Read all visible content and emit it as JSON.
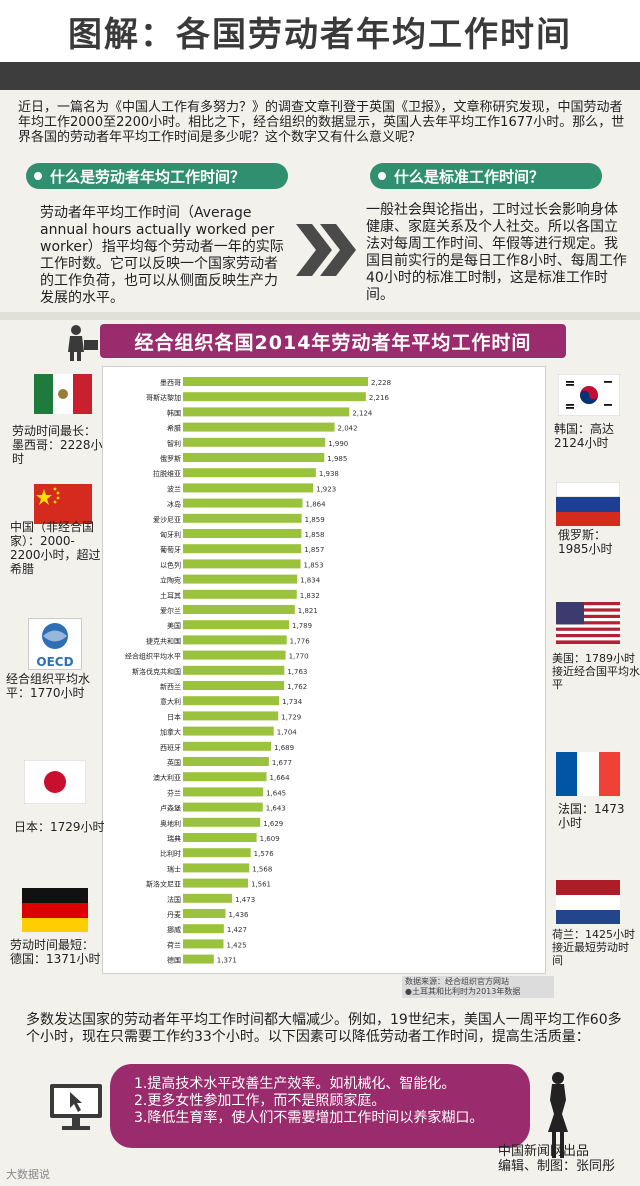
{
  "title": "图解：各国劳动者年均工作时间",
  "intro": "近日，一篇名为《中国人工作有多努力？》的调查文章刊登于英国《卫报》，文章称研究发现，中国劳动者年均工作2000至2200小时。相比之下，经合组织的数据显示，英国人去年平均工作1677小时。那么，世界各国的劳动者年平均工作时间是多少呢？这个数字又有什么意义呢？",
  "sections": {
    "q1": "什么是劳动者年均工作时间？",
    "q1_text": "劳动者年平均工作时间（Average annual hours actually worked per worker）指平均每个劳动者一年的实际工作时数。它可以反映一个国家劳动者的工作负荷，也可以从侧面反映生产力发展的水平。",
    "q2": "什么是标准工作时间？",
    "q2_text": "一般社会舆论指出，工时过长会影响身体健康、家庭关系及个人社交。所以各国立法对每周工作时间、年假等进行规定。我国目前实行的是每日工作8小时、每周工作40小时的标准工时制，这是标准工作时间。"
  },
  "chart_banner": "经合组织各国2014年劳动者年平均工作时间",
  "chart_data": {
    "type": "bar",
    "orientation": "horizontal",
    "categories": [
      "墨西哥",
      "哥斯达黎加",
      "韩国",
      "希腊",
      "智利",
      "俄罗斯",
      "拉脱维亚",
      "波兰",
      "冰岛",
      "爱沙尼亚",
      "匈牙利",
      "葡萄牙",
      "以色列",
      "立陶宛",
      "土耳其",
      "爱尔兰",
      "美国",
      "捷克共和国",
      "经合组织平均水平",
      "斯洛伐克共和国",
      "新西兰",
      "意大利",
      "日本",
      "加拿大",
      "西班牙",
      "英国",
      "澳大利亚",
      "芬兰",
      "卢森堡",
      "奥地利",
      "瑞典",
      "比利时",
      "瑞士",
      "斯洛文尼亚",
      "法国",
      "丹麦",
      "挪威",
      "荷兰",
      "德国"
    ],
    "values": [
      2228,
      2216,
      2124,
      2042,
      1990,
      1985,
      1938,
      1923,
      1864,
      1859,
      1858,
      1857,
      1853,
      1834,
      1832,
      1821,
      1789,
      1776,
      1770,
      1763,
      1762,
      1734,
      1729,
      1704,
      1689,
      1677,
      1664,
      1645,
      1643,
      1629,
      1609,
      1576,
      1568,
      1561,
      1473,
      1436,
      1427,
      1425,
      1371
    ],
    "value_labels": [
      "2,228",
      "2,216",
      "2,124",
      "2,042",
      "1,990",
      "1,985",
      "1,938",
      "1,923",
      "1,864",
      "1,859",
      "1,858",
      "1,857",
      "1,853",
      "1,834",
      "1,832",
      "1,821",
      "1,789",
      "1,776",
      "1,770",
      "1,763",
      "1,762",
      "1,734",
      "1,729",
      "1,704",
      "1,689",
      "1,677",
      "1,664",
      "1,645",
      "1,643",
      "1,629",
      "1,609",
      "1,576",
      "1,568",
      "1,561",
      "1,473",
      "1,436",
      "1,427",
      "1,425",
      "1,371"
    ],
    "bar_color": "#9bc23c",
    "source": [
      "数据来源：经合组织官方网站",
      "●土耳其和比利时为2013年数据"
    ]
  },
  "left_labels": {
    "mexico": "劳动时间最长：墨西哥：2228小时",
    "china": "中国（非经合国家）：2000-2200小时，超过希腊",
    "oecd": "经合组织平均水平：1770小时",
    "oecd_logo": "OECD",
    "japan": "日本：1729小时",
    "germany": "劳动时间最短：德国：1371小时"
  },
  "right_labels": {
    "korea": "韩国：高达2124小时",
    "russia": "俄罗斯：1985小时",
    "usa": "美国：1789小时接近经合国平均水平",
    "france": "法国：1473小时",
    "netherlands": "荷兰：1425小时接近最短劳动时间"
  },
  "bottom": {
    "summary": "多数发达国家的劳动者年平均工作时间都大幅减少。例如，19世纪末，美国人一周平均工作60多个小时，现在只需要工作约33个小时。以下因素可以降低劳动者工作时间，提高生活质量：",
    "reasons": [
      "1.提高技术水平改善生产效率。如机械化、智能化。",
      "2.更多女性参加工作，而不是照顾家庭。",
      "3.降低生育率，使人们不需要增加工作时间以养家糊口。"
    ],
    "credit": [
      "中国新闻网出品",
      "编辑、制图：张同彤"
    ],
    "watermark": "大数据说"
  },
  "colors": {
    "accent_purple": "#9a2b6c",
    "accent_green": "#2f8f6f",
    "bar": "#9bc23c"
  },
  "icons": [
    "person-computer-icon",
    "chevron-right-icon",
    "monitor-cursor-icon",
    "woman-silhouette-icon"
  ]
}
